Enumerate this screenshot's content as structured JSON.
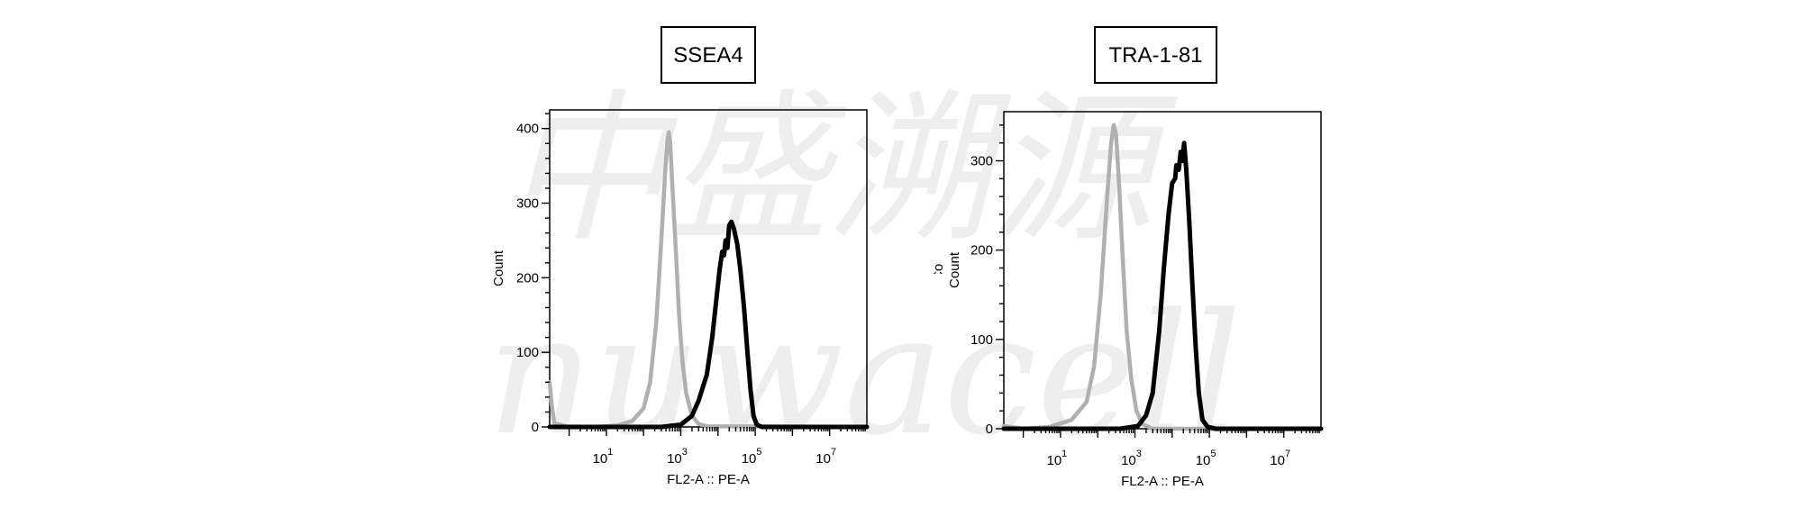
{
  "watermark": {
    "text_1": "中盛溯源",
    "text_2": "nuwacell",
    "color": "#eeeeee"
  },
  "colors": {
    "sample": "#000000",
    "control": "#b0b0b0"
  },
  "chart_data": [
    {
      "type": "histogram",
      "title": "SSEA4",
      "xlabel": "FL2-A :: PE-A",
      "ylabel": "Count",
      "xscale": "log",
      "xlim": [
        0.3,
        100000000
      ],
      "ylim": [
        0,
        425
      ],
      "yticks": [
        0,
        100,
        200,
        300,
        400
      ],
      "xticks": [
        {
          "base": "10",
          "exp": "1"
        },
        {
          "base": "10",
          "exp": "3"
        },
        {
          "base": "10",
          "exp": "5"
        },
        {
          "base": "10",
          "exp": "7"
        }
      ],
      "grid": false,
      "series": [
        {
          "role": "control",
          "color": "#b0b0b0",
          "points": [
            [
              0.3,
              60
            ],
            [
              0.34,
              30
            ],
            [
              0.4,
              5
            ],
            [
              1,
              0
            ],
            [
              5,
              0
            ],
            [
              20,
              2
            ],
            [
              50,
              8
            ],
            [
              100,
              25
            ],
            [
              150,
              60
            ],
            [
              220,
              140
            ],
            [
              300,
              250
            ],
            [
              380,
              340
            ],
            [
              440,
              385
            ],
            [
              480,
              395
            ],
            [
              520,
              380
            ],
            [
              600,
              320
            ],
            [
              750,
              230
            ],
            [
              900,
              150
            ],
            [
              1100,
              90
            ],
            [
              1400,
              45
            ],
            [
              2000,
              15
            ],
            [
              3000,
              4
            ],
            [
              5000,
              1
            ],
            [
              100000000,
              0
            ]
          ]
        },
        {
          "role": "sample",
          "color": "#000000",
          "points": [
            [
              0.3,
              0
            ],
            [
              300,
              0
            ],
            [
              1000,
              3
            ],
            [
              2000,
              15
            ],
            [
              3000,
              35
            ],
            [
              5000,
              70
            ],
            [
              7000,
              120
            ],
            [
              9000,
              170
            ],
            [
              11000,
              210
            ],
            [
              13000,
              235
            ],
            [
              14500,
              230
            ],
            [
              16000,
              250
            ],
            [
              18000,
              240
            ],
            [
              20000,
              270
            ],
            [
              23000,
              275
            ],
            [
              27000,
              265
            ],
            [
              33000,
              245
            ],
            [
              40000,
              210
            ],
            [
              50000,
              160
            ],
            [
              62000,
              100
            ],
            [
              75000,
              50
            ],
            [
              90000,
              15
            ],
            [
              110000,
              3
            ],
            [
              150000,
              0
            ],
            [
              100000000,
              0
            ]
          ]
        }
      ]
    },
    {
      "type": "histogram",
      "title": "TRA-1-81",
      "xlabel": "FL2-A :: PE-A",
      "ylabel": "Count",
      "ylabel_ghost": "Count",
      "xscale": "log",
      "xlim": [
        0.3,
        100000000
      ],
      "ylim": [
        0,
        355
      ],
      "yticks": [
        0,
        100,
        200,
        300
      ],
      "xticks": [
        {
          "base": "10",
          "exp": "1"
        },
        {
          "base": "10",
          "exp": "3"
        },
        {
          "base": "10",
          "exp": "5"
        },
        {
          "base": "10",
          "exp": "7"
        }
      ],
      "grid": false,
      "series": [
        {
          "role": "control",
          "color": "#b0b0b0",
          "points": [
            [
              0.3,
              3
            ],
            [
              1,
              0
            ],
            [
              5,
              2
            ],
            [
              20,
              10
            ],
            [
              50,
              30
            ],
            [
              80,
              70
            ],
            [
              120,
              150
            ],
            [
              180,
              260
            ],
            [
              230,
              320
            ],
            [
              270,
              340
            ],
            [
              310,
              330
            ],
            [
              380,
              270
            ],
            [
              470,
              190
            ],
            [
              600,
              110
            ],
            [
              800,
              55
            ],
            [
              1100,
              20
            ],
            [
              1600,
              5
            ],
            [
              3000,
              0
            ],
            [
              100000000,
              0
            ]
          ]
        },
        {
          "role": "sample",
          "color": "#000000",
          "points": [
            [
              0.3,
              0
            ],
            [
              400,
              0
            ],
            [
              1200,
              3
            ],
            [
              2000,
              15
            ],
            [
              3000,
              40
            ],
            [
              4500,
              110
            ],
            [
              6000,
              180
            ],
            [
              8000,
              240
            ],
            [
              10000,
              275
            ],
            [
              12000,
              280
            ],
            [
              13000,
              295
            ],
            [
              15000,
              290
            ],
            [
              17000,
              310
            ],
            [
              19000,
              300
            ],
            [
              21000,
              320
            ],
            [
              24000,
              290
            ],
            [
              29000,
              230
            ],
            [
              35000,
              160
            ],
            [
              43000,
              90
            ],
            [
              52000,
              40
            ],
            [
              65000,
              10
            ],
            [
              90000,
              2
            ],
            [
              150000,
              0
            ],
            [
              100000000,
              0
            ]
          ]
        }
      ]
    }
  ]
}
